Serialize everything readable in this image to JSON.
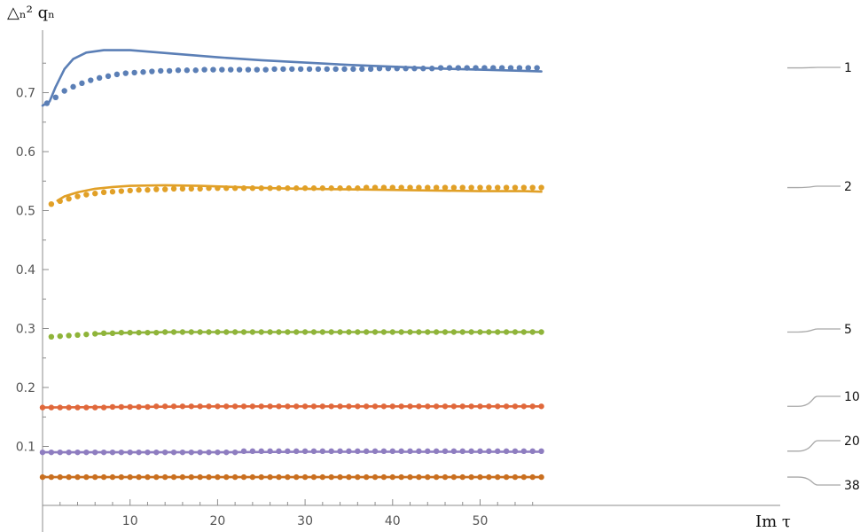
{
  "chart_data": {
    "type": "line",
    "xlabel": "Im τ",
    "ylabel": "△ₙ² qₙ",
    "xlim": [
      0,
      58
    ],
    "ylim": [
      0,
      0.78
    ],
    "xticks": [
      "10",
      "20",
      "30",
      "40",
      "50"
    ],
    "yticks": [
      "0.1",
      "0.2",
      "0.3",
      "0.4",
      "0.5",
      "0.6",
      "0.7"
    ],
    "grid": false,
    "legend": "labels at right end of each series",
    "series": [
      {
        "name": "1",
        "color": "#5b7fb6",
        "curve": {
          "x": [
            0,
            0.8,
            1.5,
            2.5,
            3.5,
            5,
            7,
            10,
            15,
            20,
            25,
            30,
            35,
            40,
            45,
            50,
            55,
            57
          ],
          "y": [
            0.678,
            0.685,
            0.71,
            0.74,
            0.757,
            0.768,
            0.772,
            0.772,
            0.766,
            0.76,
            0.755,
            0.751,
            0.747,
            0.744,
            0.741,
            0.739,
            0.737,
            0.736
          ]
        },
        "dots": {
          "x": [
            0.5,
            1.5,
            2.5,
            3.5,
            4.5,
            5.5,
            6.5,
            7.5,
            8.5,
            9.5,
            10.5,
            11.5,
            12.5,
            13.5,
            14.5,
            15.5,
            16.5,
            17.5,
            18.5,
            19.5,
            20.5,
            21.5,
            22.5,
            23.5,
            24.5,
            25.5,
            26.5,
            27.5,
            28.5,
            29.5,
            30.5,
            31.5,
            32.5,
            33.5,
            34.5,
            35.5,
            36.5,
            37.5,
            38.5,
            39.5,
            40.5,
            41.5,
            42.5,
            43.5,
            44.5,
            45.5,
            46.5,
            47.5,
            48.5,
            49.5,
            50.5,
            51.5,
            52.5,
            53.5,
            54.5,
            55.5,
            56.5
          ],
          "y": [
            0.682,
            0.692,
            0.703,
            0.71,
            0.716,
            0.721,
            0.725,
            0.728,
            0.731,
            0.733,
            0.734,
            0.735,
            0.736,
            0.737,
            0.737,
            0.738,
            0.738,
            0.738,
            0.739,
            0.739,
            0.739,
            0.739,
            0.739,
            0.739,
            0.739,
            0.739,
            0.74,
            0.74,
            0.74,
            0.74,
            0.74,
            0.74,
            0.74,
            0.74,
            0.74,
            0.74,
            0.74,
            0.74,
            0.741,
            0.741,
            0.741,
            0.741,
            0.741,
            0.741,
            0.741,
            0.742,
            0.742,
            0.742,
            0.742,
            0.742,
            0.742,
            0.742,
            0.742,
            0.742,
            0.742,
            0.742,
            0.742
          ]
        }
      },
      {
        "name": "2",
        "color": "#e1a027",
        "curve": {
          "x": [
            1.7,
            2.5,
            4,
            6,
            8,
            10,
            14,
            18,
            22,
            26,
            30,
            35,
            40,
            45,
            50,
            55,
            57
          ],
          "y": [
            0.517,
            0.524,
            0.531,
            0.537,
            0.54,
            0.542,
            0.543,
            0.542,
            0.54,
            0.538,
            0.537,
            0.536,
            0.535,
            0.534,
            0.533,
            0.533,
            0.532
          ]
        },
        "dots": {
          "x": [
            1.0,
            2.0,
            3.0,
            4.0,
            5.0,
            6.0,
            7.0,
            8.0,
            9.0,
            10.0,
            11.0,
            12.0,
            13.0,
            14.0,
            15.0,
            16.0,
            17.0,
            18.0,
            19.0,
            20.0,
            21.0,
            22.0,
            23.0,
            24.0,
            25.0,
            26.0,
            27.0,
            28.0,
            29.0,
            30.0,
            31.0,
            32.0,
            33.0,
            34.0,
            35.0,
            36.0,
            37.0,
            38.0,
            39.0,
            40.0,
            41.0,
            42.0,
            43.0,
            44.0,
            45.0,
            46.0,
            47.0,
            48.0,
            49.0,
            50.0,
            51.0,
            52.0,
            53.0,
            54.0,
            55.0,
            56.0,
            57.0
          ],
          "y": [
            0.511,
            0.516,
            0.52,
            0.524,
            0.527,
            0.529,
            0.531,
            0.532,
            0.533,
            0.534,
            0.535,
            0.535,
            0.536,
            0.536,
            0.537,
            0.537,
            0.537,
            0.537,
            0.538,
            0.538,
            0.538,
            0.538,
            0.538,
            0.538,
            0.538,
            0.538,
            0.538,
            0.538,
            0.538,
            0.538,
            0.538,
            0.538,
            0.538,
            0.538,
            0.538,
            0.538,
            0.539,
            0.539,
            0.539,
            0.539,
            0.539,
            0.539,
            0.539,
            0.539,
            0.539,
            0.539,
            0.539,
            0.539,
            0.539,
            0.539,
            0.539,
            0.539,
            0.539,
            0.539,
            0.539,
            0.539,
            0.539
          ]
        }
      },
      {
        "name": "5",
        "color": "#8fb43a",
        "curve": {
          "x": [
            5.9,
            10,
            15,
            20,
            30,
            40,
            50,
            57
          ],
          "y": [
            0.291,
            0.293,
            0.294,
            0.294,
            0.294,
            0.294,
            0.294,
            0.294
          ]
        },
        "dots": {
          "x": [
            1.0,
            2.0,
            3.0,
            4.0,
            5.0,
            6.0,
            7.0,
            8.0,
            9.0,
            10.0,
            11.0,
            12.0,
            13.0,
            14.0,
            15.0,
            16.0,
            17.0,
            18.0,
            19.0,
            20.0,
            21.0,
            22.0,
            23.0,
            24.0,
            25.0,
            26.0,
            27.0,
            28.0,
            29.0,
            30.0,
            31.0,
            32.0,
            33.0,
            34.0,
            35.0,
            36.0,
            37.0,
            38.0,
            39.0,
            40.0,
            41.0,
            42.0,
            43.0,
            44.0,
            45.0,
            46.0,
            47.0,
            48.0,
            49.0,
            50.0,
            51.0,
            52.0,
            53.0,
            54.0,
            55.0,
            56.0,
            57.0
          ],
          "y": [
            0.286,
            0.287,
            0.288,
            0.289,
            0.29,
            0.291,
            0.292,
            0.292,
            0.293,
            0.293,
            0.293,
            0.293,
            0.293,
            0.294,
            0.294,
            0.294,
            0.294,
            0.294,
            0.294,
            0.294,
            0.294,
            0.294,
            0.294,
            0.294,
            0.294,
            0.294,
            0.294,
            0.294,
            0.294,
            0.294,
            0.294,
            0.294,
            0.294,
            0.294,
            0.294,
            0.294,
            0.294,
            0.294,
            0.294,
            0.294,
            0.294,
            0.294,
            0.294,
            0.294,
            0.294,
            0.294,
            0.294,
            0.294,
            0.294,
            0.294,
            0.294,
            0.294,
            0.294,
            0.294,
            0.294,
            0.294,
            0.294
          ]
        }
      },
      {
        "name": "10",
        "color": "#e0683b",
        "curve": {
          "x": [
            0,
            10,
            20,
            30,
            40,
            50,
            57
          ],
          "y": [
            0.166,
            0.167,
            0.168,
            0.168,
            0.168,
            0.168,
            0.168
          ]
        },
        "dots": {
          "x": [
            0.0,
            1.0,
            2.0,
            3.0,
            4.0,
            5.0,
            6.0,
            7.0,
            8.0,
            9.0,
            10.0,
            11.0,
            12.0,
            13.0,
            14.0,
            15.0,
            16.0,
            17.0,
            18.0,
            19.0,
            20.0,
            21.0,
            22.0,
            23.0,
            24.0,
            25.0,
            26.0,
            27.0,
            28.0,
            29.0,
            30.0,
            31.0,
            32.0,
            33.0,
            34.0,
            35.0,
            36.0,
            37.0,
            38.0,
            39.0,
            40.0,
            41.0,
            42.0,
            43.0,
            44.0,
            45.0,
            46.0,
            47.0,
            48.0,
            49.0,
            50.0,
            51.0,
            52.0,
            53.0,
            54.0,
            55.0,
            56.0,
            57.0
          ],
          "y": [
            0.166,
            0.166,
            0.166,
            0.166,
            0.166,
            0.166,
            0.166,
            0.166,
            0.167,
            0.167,
            0.167,
            0.167,
            0.167,
            0.168,
            0.168,
            0.168,
            0.168,
            0.168,
            0.168,
            0.168,
            0.168,
            0.168,
            0.168,
            0.168,
            0.168,
            0.168,
            0.168,
            0.168,
            0.168,
            0.168,
            0.168,
            0.168,
            0.168,
            0.168,
            0.168,
            0.168,
            0.168,
            0.168,
            0.168,
            0.168,
            0.168,
            0.168,
            0.168,
            0.168,
            0.168,
            0.168,
            0.168,
            0.168,
            0.168,
            0.168,
            0.168,
            0.168,
            0.168,
            0.168,
            0.168,
            0.168,
            0.168,
            0.168
          ]
        }
      },
      {
        "name": "20",
        "color": "#8e7dc0",
        "curve": {
          "x": [
            0,
            10,
            20,
            30,
            40,
            50,
            57
          ],
          "y": [
            0.09,
            0.09,
            0.09,
            0.091,
            0.091,
            0.091,
            0.091
          ]
        },
        "dots": {
          "x": [
            0.0,
            1.0,
            2.0,
            3.0,
            4.0,
            5.0,
            6.0,
            7.0,
            8.0,
            9.0,
            10.0,
            11.0,
            12.0,
            13.0,
            14.0,
            15.0,
            16.0,
            17.0,
            18.0,
            19.0,
            20.0,
            21.0,
            22.0,
            23.0,
            24.0,
            25.0,
            26.0,
            27.0,
            28.0,
            29.0,
            30.0,
            31.0,
            32.0,
            33.0,
            34.0,
            35.0,
            36.0,
            37.0,
            38.0,
            39.0,
            40.0,
            41.0,
            42.0,
            43.0,
            44.0,
            45.0,
            46.0,
            47.0,
            48.0,
            49.0,
            50.0,
            51.0,
            52.0,
            53.0,
            54.0,
            55.0,
            56.0,
            57.0
          ],
          "y": [
            0.09,
            0.09,
            0.09,
            0.09,
            0.09,
            0.09,
            0.09,
            0.09,
            0.09,
            0.09,
            0.09,
            0.09,
            0.09,
            0.09,
            0.09,
            0.09,
            0.09,
            0.09,
            0.09,
            0.09,
            0.09,
            0.09,
            0.09,
            0.092,
            0.092,
            0.092,
            0.092,
            0.092,
            0.092,
            0.092,
            0.092,
            0.092,
            0.092,
            0.092,
            0.092,
            0.092,
            0.092,
            0.092,
            0.092,
            0.092,
            0.092,
            0.092,
            0.092,
            0.092,
            0.092,
            0.092,
            0.092,
            0.092,
            0.092,
            0.092,
            0.092,
            0.092,
            0.092,
            0.092,
            0.092,
            0.092,
            0.092,
            0.092
          ]
        }
      },
      {
        "name": "38",
        "color": "#c96f1f",
        "curve": {
          "x": [
            0,
            10,
            20,
            30,
            40,
            50,
            57
          ],
          "y": [
            0.048,
            0.048,
            0.048,
            0.048,
            0.048,
            0.048,
            0.048
          ]
        },
        "dots": {
          "x": [
            0.0,
            1.0,
            2.0,
            3.0,
            4.0,
            5.0,
            6.0,
            7.0,
            8.0,
            9.0,
            10.0,
            11.0,
            12.0,
            13.0,
            14.0,
            15.0,
            16.0,
            17.0,
            18.0,
            19.0,
            20.0,
            21.0,
            22.0,
            23.0,
            24.0,
            25.0,
            26.0,
            27.0,
            28.0,
            29.0,
            30.0,
            31.0,
            32.0,
            33.0,
            34.0,
            35.0,
            36.0,
            37.0,
            38.0,
            39.0,
            40.0,
            41.0,
            42.0,
            43.0,
            44.0,
            45.0,
            46.0,
            47.0,
            48.0,
            49.0,
            50.0,
            51.0,
            52.0,
            53.0,
            54.0,
            55.0,
            56.0,
            57.0
          ],
          "y": [
            0.048,
            0.048,
            0.048,
            0.048,
            0.048,
            0.048,
            0.048,
            0.048,
            0.048,
            0.048,
            0.048,
            0.048,
            0.048,
            0.048,
            0.048,
            0.048,
            0.048,
            0.048,
            0.048,
            0.048,
            0.048,
            0.048,
            0.048,
            0.048,
            0.048,
            0.048,
            0.048,
            0.048,
            0.048,
            0.048,
            0.048,
            0.048,
            0.048,
            0.048,
            0.048,
            0.048,
            0.048,
            0.048,
            0.048,
            0.048,
            0.048,
            0.048,
            0.048,
            0.048,
            0.048,
            0.048,
            0.048,
            0.048,
            0.048,
            0.048,
            0.048,
            0.048,
            0.048,
            0.048,
            0.048,
            0.048,
            0.048,
            0.048
          ]
        }
      }
    ]
  }
}
